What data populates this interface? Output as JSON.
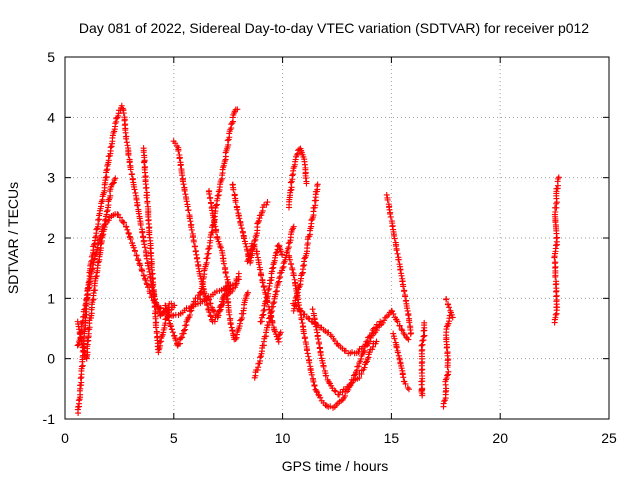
{
  "chart_data": {
    "type": "scatter",
    "title": "Day 081 of 2022, Sidereal Day-to-day VTEC variation (SDTVAR) for receiver p012",
    "xlabel": "GPS time / hours",
    "ylabel": "SDTVAR / TECUs",
    "xlim": [
      0,
      25
    ],
    "ylim": [
      -1,
      5
    ],
    "xticks": [
      "0",
      "5",
      "10",
      "15",
      "20",
      "25"
    ],
    "yticks": [
      "-1",
      "0",
      "1",
      "2",
      "3",
      "4",
      "5"
    ],
    "grid": true,
    "marker": "+",
    "color": "#ff0000",
    "series": [
      {
        "name": "s1",
        "points": [
          [
            0.6,
            -0.9
          ],
          [
            0.7,
            -0.5
          ],
          [
            0.8,
            -0.1
          ],
          [
            0.9,
            0.4
          ],
          [
            1.0,
            0.9
          ],
          [
            1.1,
            1.3
          ],
          [
            1.2,
            1.6
          ],
          [
            1.4,
            2.0
          ],
          [
            1.6,
            2.4
          ],
          [
            1.8,
            2.8
          ],
          [
            2.0,
            3.3
          ],
          [
            2.2,
            3.7
          ],
          [
            2.4,
            4.0
          ],
          [
            2.6,
            4.2
          ],
          [
            2.7,
            4.1
          ],
          [
            2.8,
            3.7
          ],
          [
            3.0,
            3.2
          ],
          [
            3.2,
            2.8
          ],
          [
            3.4,
            2.4
          ],
          [
            3.6,
            2.0
          ],
          [
            3.8,
            1.6
          ],
          [
            4.0,
            1.2
          ],
          [
            4.2,
            0.9
          ],
          [
            4.4,
            0.7
          ],
          [
            4.6,
            0.8
          ],
          [
            4.8,
            0.9
          ],
          [
            5.0,
            0.9
          ]
        ]
      },
      {
        "name": "s2",
        "points": [
          [
            0.6,
            0.2
          ],
          [
            0.8,
            0.6
          ],
          [
            1.0,
            1.0
          ],
          [
            1.2,
            1.4
          ],
          [
            1.4,
            1.7
          ],
          [
            1.6,
            2.0
          ],
          [
            1.8,
            2.2
          ],
          [
            2.0,
            2.3
          ],
          [
            2.2,
            2.4
          ],
          [
            2.4,
            2.4
          ],
          [
            2.6,
            2.3
          ],
          [
            2.8,
            2.2
          ],
          [
            3.0,
            2.0
          ],
          [
            3.2,
            1.8
          ],
          [
            3.4,
            1.6
          ],
          [
            3.6,
            1.4
          ],
          [
            3.8,
            1.2
          ],
          [
            4.0,
            1.0
          ],
          [
            4.2,
            0.9
          ],
          [
            4.5,
            0.8
          ],
          [
            5.0,
            0.7
          ],
          [
            5.5,
            0.8
          ],
          [
            6.0,
            0.9
          ],
          [
            6.5,
            1.0
          ],
          [
            7.0,
            1.1
          ],
          [
            7.5,
            1.2
          ],
          [
            8.0,
            1.3
          ]
        ]
      },
      {
        "name": "s3",
        "points": [
          [
            0.6,
            0.6
          ],
          [
            0.8,
            0.2
          ],
          [
            1.0,
            0.0
          ],
          [
            1.1,
            0.5
          ],
          [
            1.3,
            1.0
          ],
          [
            1.5,
            1.5
          ],
          [
            1.7,
            2.0
          ],
          [
            1.9,
            2.4
          ],
          [
            2.1,
            2.8
          ],
          [
            2.3,
            3.0
          ]
        ]
      },
      {
        "name": "s4",
        "points": [
          [
            3.6,
            3.5
          ],
          [
            3.7,
            3.0
          ],
          [
            3.8,
            2.5
          ],
          [
            3.9,
            2.0
          ],
          [
            4.0,
            1.5
          ],
          [
            4.1,
            1.0
          ],
          [
            4.2,
            0.5
          ],
          [
            4.3,
            0.1
          ],
          [
            4.4,
            0.3
          ],
          [
            4.6,
            0.6
          ],
          [
            4.8,
            0.8
          ],
          [
            5.0,
            0.9
          ]
        ]
      },
      {
        "name": "s5",
        "points": [
          [
            5.0,
            3.6
          ],
          [
            5.2,
            3.5
          ],
          [
            5.4,
            3.0
          ],
          [
            5.6,
            2.6
          ],
          [
            5.8,
            2.2
          ],
          [
            6.0,
            1.8
          ],
          [
            6.2,
            1.4
          ],
          [
            6.4,
            1.1
          ],
          [
            6.6,
            0.8
          ],
          [
            6.8,
            0.6
          ],
          [
            7.0,
            0.7
          ],
          [
            7.2,
            0.9
          ],
          [
            7.4,
            1.0
          ],
          [
            7.6,
            1.1
          ],
          [
            7.8,
            1.2
          ],
          [
            8.0,
            1.4
          ]
        ]
      },
      {
        "name": "s6",
        "points": [
          [
            4.6,
            0.9
          ],
          [
            4.8,
            0.6
          ],
          [
            5.0,
            0.4
          ],
          [
            5.2,
            0.2
          ],
          [
            5.4,
            0.4
          ],
          [
            5.6,
            0.6
          ],
          [
            5.8,
            0.8
          ],
          [
            6.0,
            1.0
          ],
          [
            6.3,
            1.1
          ],
          [
            6.6,
            1.0
          ],
          [
            6.8,
            0.8
          ],
          [
            7.0,
            0.7
          ],
          [
            7.2,
            0.9
          ],
          [
            7.4,
            1.2
          ],
          [
            7.6,
            0.6
          ],
          [
            7.8,
            0.3
          ],
          [
            8.0,
            0.5
          ],
          [
            8.2,
            0.8
          ],
          [
            8.4,
            1.1
          ]
        ]
      },
      {
        "name": "s7",
        "points": [
          [
            6.2,
            1.0
          ],
          [
            6.4,
            1.4
          ],
          [
            6.6,
            1.8
          ],
          [
            6.8,
            2.2
          ],
          [
            7.0,
            2.6
          ],
          [
            7.2,
            3.0
          ],
          [
            7.4,
            3.4
          ],
          [
            7.6,
            3.8
          ],
          [
            7.8,
            4.1
          ],
          [
            7.9,
            4.15
          ]
        ]
      },
      {
        "name": "s8",
        "points": [
          [
            6.6,
            2.8
          ],
          [
            6.8,
            2.4
          ],
          [
            7.0,
            2.0
          ],
          [
            7.2,
            1.8
          ],
          [
            7.4,
            1.4
          ],
          [
            7.6,
            1.1
          ]
        ]
      },
      {
        "name": "s9",
        "points": [
          [
            7.7,
            2.9
          ],
          [
            7.9,
            2.5
          ],
          [
            8.1,
            2.2
          ],
          [
            8.3,
            1.9
          ],
          [
            8.5,
            1.6
          ],
          [
            8.7,
            1.9
          ],
          [
            8.9,
            2.3
          ],
          [
            9.1,
            2.5
          ],
          [
            9.3,
            2.6
          ]
        ]
      },
      {
        "name": "s10",
        "points": [
          [
            8.7,
            -0.3
          ],
          [
            8.9,
            -0.1
          ],
          [
            9.1,
            0.2
          ],
          [
            9.3,
            0.5
          ],
          [
            9.5,
            0.8
          ],
          [
            9.7,
            1.1
          ],
          [
            9.9,
            1.4
          ],
          [
            10.1,
            1.6
          ],
          [
            10.3,
            1.9
          ],
          [
            10.5,
            2.2
          ]
        ]
      },
      {
        "name": "s11",
        "points": [
          [
            8.4,
            1.6
          ],
          [
            8.6,
            1.9
          ],
          [
            8.8,
            1.8
          ],
          [
            9.0,
            1.4
          ],
          [
            9.2,
            1.1
          ],
          [
            9.4,
            0.8
          ],
          [
            9.6,
            0.5
          ],
          [
            9.8,
            0.3
          ],
          [
            9.9,
            0.45
          ]
        ]
      },
      {
        "name": "s12",
        "points": [
          [
            9.0,
            0.6
          ],
          [
            9.2,
            0.9
          ],
          [
            9.4,
            1.2
          ],
          [
            9.6,
            1.6
          ],
          [
            9.8,
            1.9
          ],
          [
            10.0,
            1.7
          ]
        ]
      },
      {
        "name": "s13",
        "points": [
          [
            10.3,
            2.5
          ],
          [
            10.4,
            2.9
          ],
          [
            10.6,
            3.3
          ],
          [
            10.8,
            3.5
          ],
          [
            11.0,
            3.3
          ],
          [
            11.1,
            2.9
          ]
        ]
      },
      {
        "name": "s14",
        "points": [
          [
            10.3,
            1.7
          ],
          [
            10.5,
            1.4
          ],
          [
            10.7,
            1.0
          ],
          [
            10.9,
            0.6
          ],
          [
            11.1,
            0.2
          ],
          [
            11.3,
            -0.2
          ],
          [
            11.5,
            -0.5
          ],
          [
            11.8,
            -0.7
          ],
          [
            12.1,
            -0.8
          ],
          [
            12.4,
            -0.8
          ],
          [
            12.7,
            -0.7
          ],
          [
            13.0,
            -0.5
          ],
          [
            13.3,
            -0.3
          ],
          [
            13.6,
            0.0
          ],
          [
            13.9,
            0.3
          ],
          [
            14.2,
            0.5
          ],
          [
            14.5,
            0.6
          ]
        ]
      },
      {
        "name": "s15",
        "points": [
          [
            10.5,
            0.9
          ],
          [
            10.8,
            0.8
          ],
          [
            11.1,
            0.7
          ],
          [
            11.4,
            0.6
          ],
          [
            11.8,
            0.5
          ],
          [
            12.2,
            0.4
          ],
          [
            12.6,
            0.2
          ],
          [
            13.0,
            0.1
          ],
          [
            13.4,
            0.1
          ],
          [
            13.8,
            0.2
          ],
          [
            14.2,
            0.4
          ],
          [
            14.6,
            0.6
          ],
          [
            15.0,
            0.8
          ],
          [
            15.3,
            0.6
          ],
          [
            15.6,
            0.4
          ],
          [
            15.8,
            0.3
          ]
        ]
      },
      {
        "name": "s16",
        "points": [
          [
            11.4,
            0.8
          ],
          [
            11.6,
            0.4
          ],
          [
            11.8,
            0.0
          ],
          [
            12.0,
            -0.3
          ],
          [
            12.3,
            -0.5
          ],
          [
            12.6,
            -0.6
          ],
          [
            12.9,
            -0.5
          ],
          [
            13.2,
            -0.4
          ],
          [
            13.5,
            -0.3
          ],
          [
            13.8,
            -0.1
          ],
          [
            14.0,
            0.1
          ],
          [
            14.3,
            0.3
          ]
        ]
      },
      {
        "name": "s17",
        "points": [
          [
            11.6,
            2.9
          ],
          [
            11.5,
            2.6
          ],
          [
            11.3,
            2.2
          ],
          [
            11.1,
            1.8
          ],
          [
            10.9,
            1.4
          ],
          [
            10.7,
            1.1
          ],
          [
            10.5,
            0.8
          ]
        ]
      },
      {
        "name": "s18",
        "points": [
          [
            14.8,
            2.7
          ],
          [
            15.0,
            2.3
          ],
          [
            15.2,
            1.9
          ],
          [
            15.4,
            1.5
          ],
          [
            15.6,
            1.1
          ],
          [
            15.8,
            0.7
          ],
          [
            15.9,
            0.4
          ]
        ]
      },
      {
        "name": "s19",
        "points": [
          [
            15.1,
            0.4
          ],
          [
            15.3,
            0.1
          ],
          [
            15.5,
            -0.2
          ],
          [
            15.6,
            -0.4
          ],
          [
            15.8,
            -0.5
          ]
        ]
      },
      {
        "name": "s20",
        "points": [
          [
            16.4,
            -0.5
          ],
          [
            16.4,
            -0.6
          ],
          [
            16.4,
            0.2
          ],
          [
            16.5,
            0.4
          ],
          [
            16.5,
            0.6
          ]
        ]
      },
      {
        "name": "s21",
        "points": [
          [
            17.4,
            -0.8
          ],
          [
            17.5,
            -0.6
          ],
          [
            17.5,
            -0.4
          ],
          [
            17.6,
            -0.2
          ],
          [
            17.6,
            0.0
          ],
          [
            17.5,
            0.4
          ],
          [
            17.6,
            0.6
          ],
          [
            17.7,
            0.7
          ],
          [
            17.8,
            0.7
          ],
          [
            17.5,
            1.0
          ]
        ]
      },
      {
        "name": "s22",
        "points": [
          [
            22.5,
            0.6
          ],
          [
            22.6,
            0.8
          ],
          [
            22.6,
            0.9
          ],
          [
            22.5,
            1.7
          ],
          [
            22.6,
            1.9
          ],
          [
            22.6,
            2.1
          ],
          [
            22.5,
            2.4
          ],
          [
            22.6,
            2.6
          ],
          [
            22.6,
            2.8
          ],
          [
            22.7,
            3.0
          ]
        ]
      }
    ]
  }
}
